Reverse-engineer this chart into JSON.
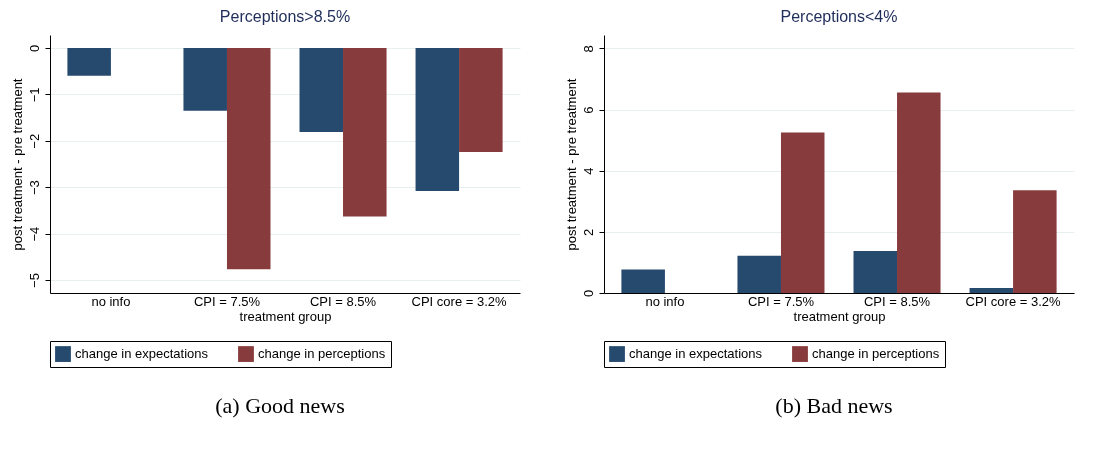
{
  "chart_data": [
    {
      "type": "bar",
      "title": "Perceptions>8.5%",
      "xlabel": "treatment group",
      "ylabel": "post treatment - pre treatment",
      "categories": [
        "no info",
        "CPI = 7.5%",
        "CPI = 8.5%",
        "CPI core = 3.2%"
      ],
      "series": [
        {
          "name": "change in expectations",
          "color": "#264a6e",
          "values": [
            -0.6,
            -1.35,
            -1.81,
            -3.08
          ]
        },
        {
          "name": "change in perceptions",
          "color": "#873b3d",
          "values": [
            null,
            -4.77,
            -3.63,
            -2.24
          ]
        }
      ],
      "ylim": [
        -5.28,
        0.28
      ],
      "yticks": [
        -5,
        -4,
        -3,
        -2,
        -1,
        0
      ],
      "grid": "y",
      "legend": "bottom",
      "annotations": [
        "(a) Good news"
      ]
    },
    {
      "type": "bar",
      "title": "Perceptions<4%",
      "xlabel": "treatment group",
      "ylabel": "post treatment - pre treatment",
      "categories": [
        "no info",
        "CPI = 7.5%",
        "CPI = 8.5%",
        "CPI core = 3.2%"
      ],
      "series": [
        {
          "name": "change in expectations",
          "color": "#264a6e",
          "values": [
            0.77,
            1.22,
            1.37,
            0.16
          ]
        },
        {
          "name": "change in perceptions",
          "color": "#873b3d",
          "values": [
            null,
            5.25,
            6.56,
            3.36
          ]
        }
      ],
      "ylim": [
        0,
        8.44
      ],
      "yticks": [
        0,
        2,
        4,
        6,
        8
      ],
      "grid": "y",
      "legend": "bottom",
      "annotations": [
        "(b) Bad news"
      ]
    }
  ]
}
